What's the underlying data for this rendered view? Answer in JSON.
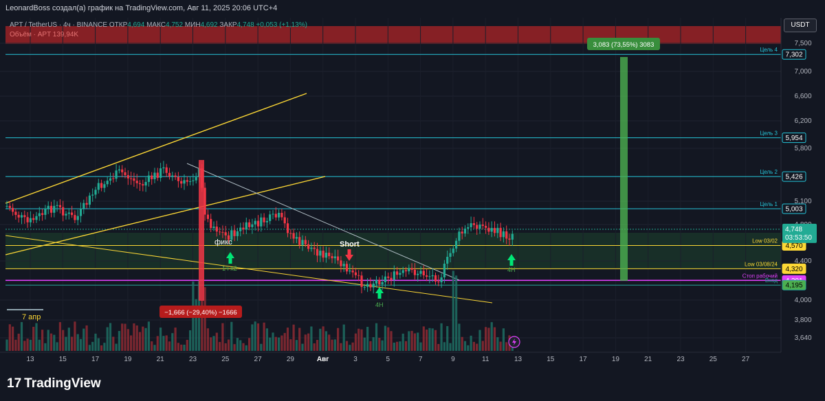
{
  "header": {
    "title": "LeonardBoss создал(а) график на TradingView.com, Авг 11, 2025 20:06 UTC+4"
  },
  "legend": {
    "line1_prefix": "APT / TetherUS · 4ч · BINANCE  ОТКР",
    "open": "4,694",
    "high_label": "МАКС",
    "high": "4,752",
    "low_label": "МИН",
    "low": "4,692",
    "close_label": "ЗАКР",
    "close": "4,748",
    "change": "+0,053 (+1,13%)",
    "volume_label": "Объём · APT",
    "volume": "139,94K"
  },
  "currency_button": "USDT",
  "colors": {
    "background": "#131722",
    "up": "#22ab94",
    "down": "#f23645",
    "cyan_level": "#26c6da",
    "yellow_line": "#fdd835",
    "magenta": "#e040fb",
    "green_target": "#4caf50"
  },
  "chart_data": {
    "type": "candlestick",
    "symbol": "APT / TetherUS",
    "timeframe": "4ч",
    "exchange": "BINANCE",
    "y_ticks": [
      "7,500",
      "7,000",
      "6,600",
      "6,200",
      "5,800",
      "5,100",
      "4,800",
      "4,400",
      "4,000",
      "3,800",
      "3,640"
    ],
    "x_ticks": [
      "13",
      "15",
      "17",
      "19",
      "21",
      "23",
      "25",
      "27",
      "29",
      "Авг",
      "3",
      "5",
      "7",
      "9",
      "11",
      "13",
      "15",
      "17",
      "19",
      "21",
      "23",
      "25",
      "27"
    ],
    "ylim": [
      3.5,
      7.7
    ],
    "price_levels": [
      {
        "value": "7,302",
        "label": "Цель 4"
      },
      {
        "value": "5,954",
        "label": "Цель 3"
      },
      {
        "value": "5,426",
        "label": "Цель 2"
      },
      {
        "value": "5,003",
        "label": "Цель 1"
      },
      {
        "value": "4,570",
        "label": "Low 03/02"
      },
      {
        "value": "4,320",
        "label": "Low 03/08/24"
      },
      {
        "value": "4,201",
        "label": "Стоп рабочий"
      },
      {
        "value": "4,195",
        "label": "Вход"
      }
    ],
    "current_price": {
      "value": "4,748",
      "countdown": "03:53:50"
    },
    "annotations": {
      "short": "Short",
      "fix": "фикс",
      "tf_1": "1ч x2",
      "tf_2": "4H",
      "tf_3": "4H",
      "period": "7 апр",
      "measure_down": "−1,666 (−29,40%) −1666",
      "measure_up": "3,083 (73,55%) 3083"
    }
  },
  "footer": {
    "brand": "TradingView",
    "logo_mark": "17"
  }
}
